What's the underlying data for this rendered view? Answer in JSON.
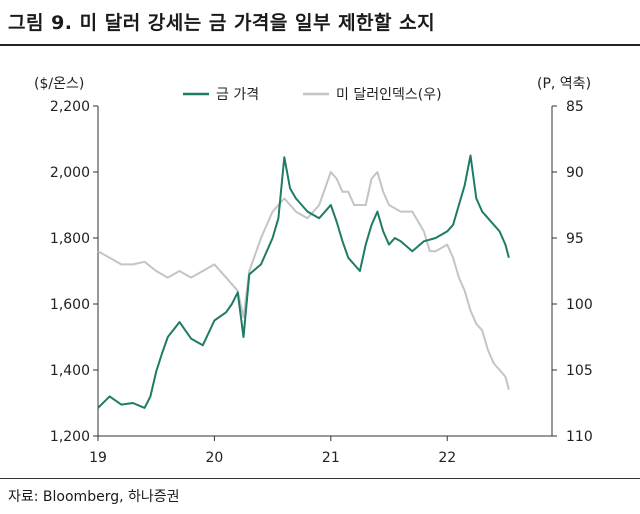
{
  "title": "그림 9. 미 달러 강세는 금 가격을 일부 제한할 소지",
  "source": "자료: Bloomberg, 하나증권",
  "colors": {
    "gold": "#1f7a66",
    "dxy": "#c4c4c4",
    "axis": "#333333"
  },
  "chart_data": {
    "type": "line",
    "title": "그림 9. 미 달러 강세는 금 가격을 일부 제한할 소지",
    "x_tick_labels": [
      "19",
      "20",
      "21",
      "22"
    ],
    "x_ticks": [
      2019,
      2020,
      2021,
      2022
    ],
    "xlim": [
      2019,
      2022.9
    ],
    "left_axis": {
      "label": "($/온스)",
      "ylim": [
        1200,
        2200
      ],
      "ticks": [
        1200,
        1400,
        1600,
        1800,
        2000,
        2200
      ],
      "tick_labels": [
        "1,200",
        "1,400",
        "1,600",
        "1,800",
        "2,000",
        "2,200"
      ]
    },
    "right_axis": {
      "label": "(P, 역축)",
      "ylim": [
        85,
        110
      ],
      "inverted": true,
      "ticks": [
        85,
        90,
        95,
        100,
        105,
        110
      ],
      "tick_labels": [
        "85",
        "90",
        "95",
        "100",
        "105",
        "110"
      ]
    },
    "legend": {
      "placement": "top-center"
    },
    "series": [
      {
        "name": "금 가격",
        "axis": "left",
        "x": [
          2019.0,
          2019.1,
          2019.2,
          2019.3,
          2019.4,
          2019.45,
          2019.5,
          2019.55,
          2019.6,
          2019.7,
          2019.8,
          2019.9,
          2020.0,
          2020.1,
          2020.15,
          2020.2,
          2020.25,
          2020.3,
          2020.4,
          2020.5,
          2020.55,
          2020.6,
          2020.65,
          2020.7,
          2020.8,
          2020.9,
          2021.0,
          2021.05,
          2021.1,
          2021.15,
          2021.2,
          2021.25,
          2021.3,
          2021.35,
          2021.4,
          2021.45,
          2021.5,
          2021.55,
          2021.6,
          2021.7,
          2021.8,
          2021.9,
          2022.0,
          2022.05,
          2022.1,
          2022.15,
          2022.2,
          2022.25,
          2022.3,
          2022.35,
          2022.4,
          2022.45,
          2022.5,
          2022.53
        ],
        "values": [
          1285,
          1320,
          1295,
          1300,
          1285,
          1320,
          1395,
          1450,
          1500,
          1545,
          1495,
          1475,
          1550,
          1575,
          1600,
          1635,
          1500,
          1690,
          1720,
          1800,
          1860,
          2045,
          1950,
          1920,
          1880,
          1860,
          1900,
          1850,
          1790,
          1740,
          1720,
          1700,
          1780,
          1840,
          1880,
          1820,
          1780,
          1800,
          1790,
          1760,
          1790,
          1800,
          1820,
          1840,
          1900,
          1960,
          2050,
          1920,
          1880,
          1860,
          1840,
          1820,
          1780,
          1740
        ]
      },
      {
        "name": "미 달러인덱스(우)",
        "axis": "right",
        "x": [
          2019.0,
          2019.1,
          2019.2,
          2019.3,
          2019.4,
          2019.5,
          2019.6,
          2019.7,
          2019.8,
          2019.9,
          2020.0,
          2020.1,
          2020.15,
          2020.2,
          2020.25,
          2020.3,
          2020.4,
          2020.5,
          2020.55,
          2020.6,
          2020.7,
          2020.8,
          2020.9,
          2021.0,
          2021.05,
          2021.1,
          2021.15,
          2021.2,
          2021.3,
          2021.35,
          2021.4,
          2021.45,
          2021.5,
          2021.6,
          2021.7,
          2021.8,
          2021.85,
          2021.9,
          2022.0,
          2022.05,
          2022.1,
          2022.15,
          2022.2,
          2022.25,
          2022.3,
          2022.35,
          2022.4,
          2022.45,
          2022.5,
          2022.53
        ],
        "values": [
          96,
          96.5,
          97,
          97,
          96.8,
          97.5,
          98,
          97.5,
          98,
          97.5,
          97,
          98,
          98.5,
          99,
          101,
          97.5,
          95,
          93,
          92.5,
          92,
          93,
          93.5,
          92.5,
          90,
          90.5,
          91.5,
          91.5,
          92.5,
          92.5,
          90.5,
          90,
          91.5,
          92.5,
          93,
          93,
          94.5,
          96,
          96,
          95.5,
          96.5,
          98,
          99,
          100.5,
          101.5,
          102,
          103.5,
          104.5,
          105,
          105.5,
          106.5
        ]
      }
    ]
  }
}
